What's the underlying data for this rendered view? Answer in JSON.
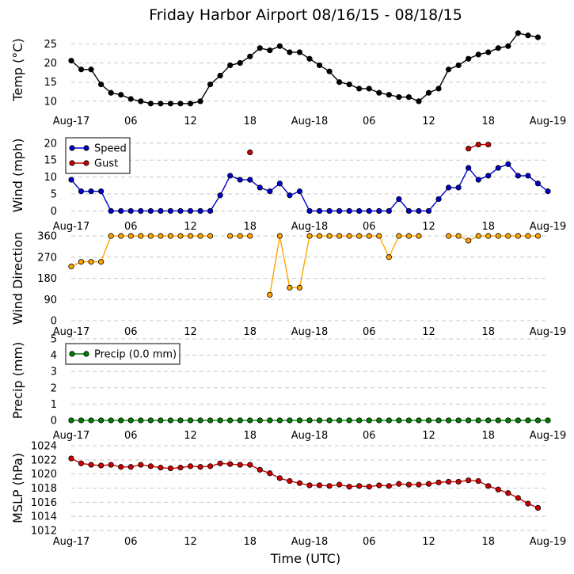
{
  "title": "Friday Harbor Airport 08/16/15 - 08/18/15",
  "xlabel": "Time (UTC)",
  "x_tick_labels": [
    "Aug-17",
    "06",
    "12",
    "18",
    "Aug-18",
    "06",
    "12",
    "18",
    "Aug-19"
  ],
  "x_tick_hours": [
    0,
    6,
    12,
    18,
    24,
    30,
    36,
    42,
    48
  ],
  "colors": {
    "temp": "#000000",
    "speed": "#0000cc",
    "gust": "#cc0000",
    "direction": "#ffa500",
    "precip": "#008000",
    "pressure": "#cc0000",
    "grid": "#c8c8c8"
  },
  "chart_data": [
    {
      "type": "line",
      "id": "temp",
      "ylabel": "Temp (°C)",
      "ylim": [
        7.5,
        29
      ],
      "yticks": [
        10,
        15,
        20,
        25
      ],
      "x": [
        0,
        1,
        2,
        3,
        4,
        5,
        6,
        7,
        8,
        9,
        10,
        11,
        12,
        13,
        14,
        15,
        16,
        17,
        18,
        19,
        20,
        21,
        22,
        23,
        24,
        25,
        26,
        27,
        28,
        29,
        30,
        31,
        32,
        33,
        34,
        35,
        36,
        37,
        38,
        39,
        40,
        41,
        42,
        43,
        44,
        45,
        46,
        47,
        48
      ],
      "series": [
        {
          "name": "Temp",
          "color_key": "temp",
          "values": [
            20.6,
            18.3,
            18.3,
            14.4,
            12.2,
            11.7,
            10.6,
            10.0,
            9.4,
            9.4,
            9.4,
            9.4,
            9.4,
            10.0,
            14.4,
            16.7,
            19.4,
            20.0,
            21.7,
            23.9,
            23.3,
            24.4,
            22.8,
            22.8,
            21.1,
            19.4,
            17.8,
            15.0,
            14.4,
            13.3,
            13.3,
            12.2,
            11.7,
            11.1,
            11.1,
            10.0,
            12.2,
            13.3,
            18.3,
            19.4,
            21.1,
            22.2,
            22.8,
            23.9,
            24.4,
            27.8,
            27.2,
            26.7,
            null
          ]
        }
      ]
    },
    {
      "type": "line",
      "id": "wind",
      "ylabel": "Wind (mph)",
      "ylim": [
        -2,
        23
      ],
      "yticks": [
        0,
        5,
        10,
        15,
        20
      ],
      "legend": "top-left",
      "x": [
        0,
        1,
        2,
        3,
        4,
        5,
        6,
        7,
        8,
        9,
        10,
        11,
        12,
        13,
        14,
        15,
        16,
        17,
        18,
        19,
        20,
        21,
        22,
        23,
        24,
        25,
        26,
        27,
        28,
        29,
        30,
        31,
        32,
        33,
        34,
        35,
        36,
        37,
        38,
        39,
        40,
        41,
        42,
        43,
        44,
        45,
        46,
        47,
        48
      ],
      "series": [
        {
          "name": "Speed",
          "color_key": "speed",
          "values": [
            9.2,
            5.8,
            5.8,
            5.8,
            0,
            0,
            0,
            0,
            0,
            0,
            0,
            0,
            0,
            0,
            0,
            4.6,
            10.4,
            9.2,
            9.2,
            6.9,
            5.8,
            8.1,
            4.6,
            5.8,
            0,
            0,
            0,
            0,
            0,
            0,
            0,
            0,
            0,
            3.5,
            0,
            0,
            0,
            3.5,
            6.9,
            6.9,
            12.7,
            9.2,
            10.4,
            12.7,
            13.8,
            10.4,
            10.4,
            8.1,
            5.8
          ]
        },
        {
          "name": "Gust",
          "color_key": "gust",
          "values": [
            null,
            null,
            null,
            null,
            null,
            null,
            null,
            null,
            null,
            null,
            null,
            null,
            null,
            null,
            null,
            null,
            null,
            null,
            17.3,
            null,
            null,
            null,
            null,
            null,
            null,
            null,
            null,
            null,
            null,
            null,
            null,
            null,
            null,
            null,
            null,
            null,
            null,
            null,
            null,
            null,
            18.4,
            19.6,
            19.6,
            null,
            null,
            null,
            null,
            null,
            null
          ]
        }
      ]
    },
    {
      "type": "line",
      "id": "direction",
      "ylabel": "Wind Direction",
      "ylim": [
        0,
        360
      ],
      "yticks": [
        0,
        90,
        180,
        270,
        360
      ],
      "x": [
        0,
        1,
        2,
        3,
        4,
        5,
        6,
        7,
        8,
        9,
        10,
        11,
        12,
        13,
        14,
        15,
        16,
        17,
        18,
        19,
        20,
        21,
        22,
        23,
        24,
        25,
        26,
        27,
        28,
        29,
        30,
        31,
        32,
        33,
        34,
        35,
        36,
        37,
        38,
        39,
        40,
        41,
        42,
        43,
        44,
        45,
        46,
        47,
        48
      ],
      "series": [
        {
          "name": "Direction",
          "color_key": "direction",
          "values": [
            230,
            250,
            250,
            250,
            360,
            360,
            360,
            360,
            360,
            360,
            360,
            360,
            360,
            360,
            360,
            null,
            360,
            360,
            360,
            null,
            110,
            360,
            140,
            140,
            360,
            360,
            360,
            360,
            360,
            360,
            360,
            360,
            270,
            360,
            360,
            360,
            null,
            null,
            360,
            360,
            340,
            360,
            360,
            360,
            360,
            360,
            360,
            360,
            null
          ]
        }
      ]
    },
    {
      "type": "line",
      "id": "precip",
      "ylabel": "Precip (mm)",
      "ylim": [
        -0.1,
        5
      ],
      "yticks": [
        0,
        1,
        2,
        3,
        4,
        5
      ],
      "legend": "top-left",
      "x": [
        0,
        1,
        2,
        3,
        4,
        5,
        6,
        7,
        8,
        9,
        10,
        11,
        12,
        13,
        14,
        15,
        16,
        17,
        18,
        19,
        20,
        21,
        22,
        23,
        24,
        25,
        26,
        27,
        28,
        29,
        30,
        31,
        32,
        33,
        34,
        35,
        36,
        37,
        38,
        39,
        40,
        41,
        42,
        43,
        44,
        45,
        46,
        47,
        48
      ],
      "series": [
        {
          "name": "Precip (0.0 mm)",
          "color_key": "precip",
          "values": [
            0,
            0,
            0,
            0,
            0,
            0,
            0,
            0,
            0,
            0,
            0,
            0,
            0,
            0,
            0,
            0,
            0,
            0,
            0,
            0,
            0,
            0,
            0,
            0,
            0,
            0,
            0,
            0,
            0,
            0,
            0,
            0,
            0,
            0,
            0,
            0,
            0,
            0,
            0,
            0,
            0,
            0,
            0,
            0,
            0,
            0,
            0,
            0,
            0
          ]
        }
      ]
    },
    {
      "type": "line",
      "id": "mslp",
      "ylabel": "MSLP (hPa)",
      "ylim": [
        1012,
        1024
      ],
      "yticks": [
        1012,
        1014,
        1016,
        1018,
        1020,
        1022,
        1024
      ],
      "x": [
        0,
        1,
        2,
        3,
        4,
        5,
        6,
        7,
        8,
        9,
        10,
        11,
        12,
        13,
        14,
        15,
        16,
        17,
        18,
        19,
        20,
        21,
        22,
        23,
        24,
        25,
        26,
        27,
        28,
        29,
        30,
        31,
        32,
        33,
        34,
        35,
        36,
        37,
        38,
        39,
        40,
        41,
        42,
        43,
        44,
        45,
        46,
        47,
        48
      ],
      "series": [
        {
          "name": "MSLP",
          "color_key": "pressure",
          "values": [
            1022.2,
            1021.5,
            1021.3,
            1021.2,
            1021.3,
            1021.0,
            1021.0,
            1021.3,
            1021.1,
            1020.9,
            1020.8,
            1020.9,
            1021.1,
            1021.0,
            1021.1,
            1021.5,
            1021.4,
            1021.3,
            1021.3,
            1020.6,
            1020.1,
            1019.4,
            1019.0,
            1018.7,
            1018.4,
            1018.4,
            1018.3,
            1018.5,
            1018.2,
            1018.3,
            1018.2,
            1018.4,
            1018.3,
            1018.6,
            1018.5,
            1018.5,
            1018.6,
            1018.8,
            1018.9,
            1018.9,
            1019.1,
            1019.0,
            1018.3,
            1017.8,
            1017.3,
            1016.6,
            1015.8,
            1015.2,
            null
          ]
        }
      ]
    }
  ]
}
